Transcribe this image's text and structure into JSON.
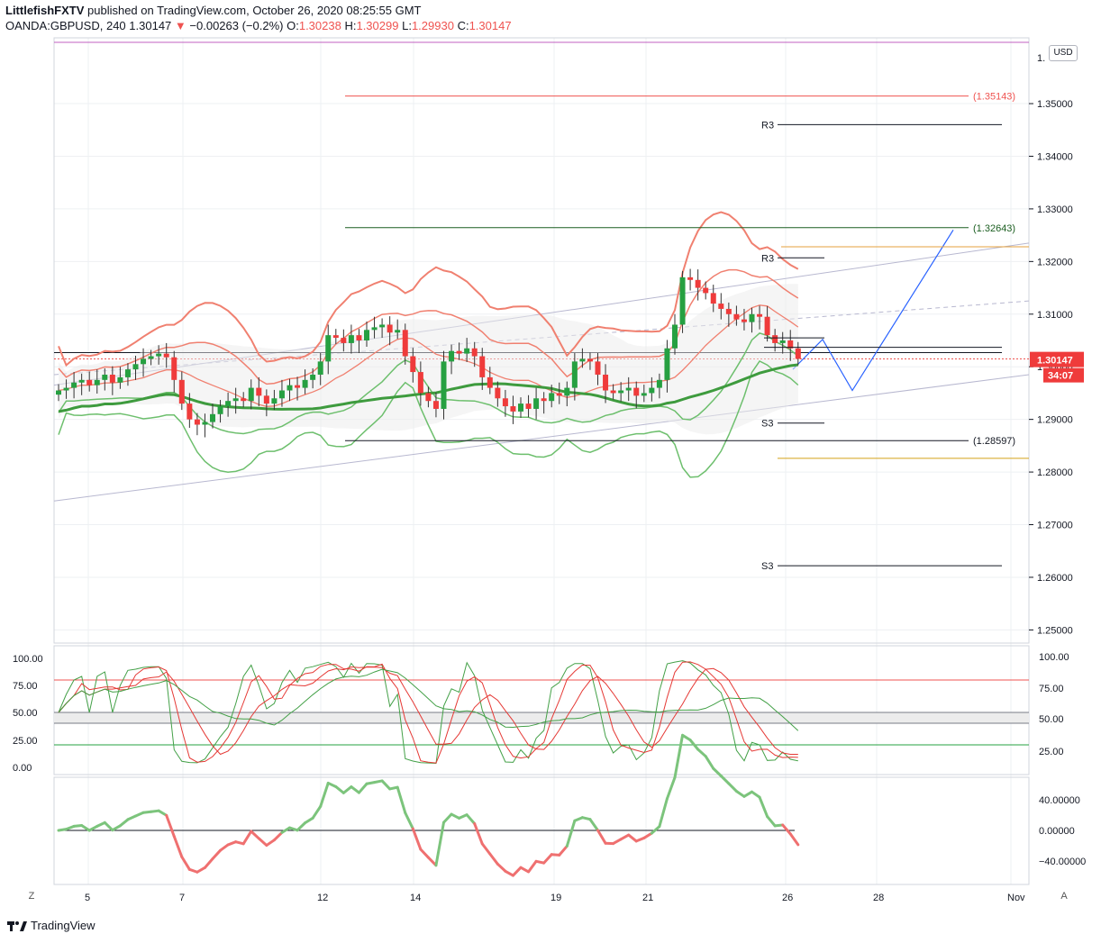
{
  "header": {
    "publisher": "LittlefishFXTV",
    "published_text": " published on TradingView.com, October 26, 2020 08:25:55 GMT",
    "symbol": "OANDA:GBPUSD, 240",
    "last": "1.30147",
    "change": "−0.00263 (−0.2%)",
    "o_label": "O:",
    "o": "1.30238",
    "h_label": "H:",
    "h": "1.30299",
    "l_label": "L:",
    "l": "1.29930",
    "c_label": "C:",
    "c": "1.30147"
  },
  "currency_label": "USD",
  "price_tag": "1.30147",
  "countdown_tag": "34:07",
  "footer_logo": "TradingView",
  "btn_z": "Z",
  "btn_a": "A",
  "colors": {
    "bull": "#26a041",
    "bear": "#ef3b3b",
    "band_red": "#f08070",
    "band_green": "#6dbf6d",
    "grid": "#eef0f3"
  },
  "chart_data": [
    {
      "type": "candlestick",
      "symbol": "OANDA:GBPUSD",
      "timeframe": "240",
      "y_ticks": [
        1.25,
        1.26,
        1.27,
        1.28,
        1.29,
        1.3,
        1.31,
        1.32,
        1.33,
        1.34,
        1.35
      ],
      "y_tick_labels": [
        "1.25000",
        "1.26000",
        "1.27000",
        "1.28000",
        "1.29000",
        "1.30000",
        "1.31000",
        "1.32000",
        "1.33000",
        "1.34000",
        "1.35000"
      ],
      "ylim": [
        1.2475,
        1.3625
      ],
      "x_ticks": [
        "5",
        "7",
        "12",
        "14",
        "19",
        "21",
        "26",
        "28",
        "Nov"
      ],
      "levels": [
        {
          "label": "(1.35143)",
          "value": 1.35143,
          "color": "#ef5350"
        },
        {
          "label": "(1.32643)",
          "value": 1.32643,
          "color": "#1b5e20"
        },
        {
          "label": "(1.28597)",
          "value": 1.28597,
          "color": "#131722"
        }
      ],
      "pivot_labels": [
        {
          "label": "R3",
          "value": 1.346
        },
        {
          "label": "R3",
          "value": 1.3207
        },
        {
          "label": "S3",
          "value": 1.2893
        },
        {
          "label": "S3",
          "value": 1.2622
        }
      ],
      "closes": [
        1.2955,
        1.296,
        1.297,
        1.2975,
        1.2965,
        1.2975,
        1.2985,
        1.297,
        1.298,
        1.2995,
        1.3005,
        1.3015,
        1.302,
        1.3025,
        1.3018,
        1.2975,
        1.293,
        1.29,
        1.289,
        1.2895,
        1.291,
        1.2925,
        1.2935,
        1.294,
        1.2935,
        1.296,
        1.2945,
        1.293,
        1.294,
        1.2955,
        1.2965,
        1.296,
        1.2975,
        1.2985,
        1.301,
        1.306,
        1.3055,
        1.3045,
        1.306,
        1.305,
        1.307,
        1.3075,
        1.308,
        1.3065,
        1.307,
        1.302,
        1.299,
        1.295,
        1.2935,
        1.292,
        1.301,
        1.303,
        1.3025,
        1.3035,
        1.302,
        1.298,
        1.296,
        1.294,
        1.2925,
        1.2915,
        1.293,
        1.292,
        1.294,
        1.2935,
        1.295,
        1.2945,
        1.296,
        1.301,
        1.3015,
        1.301,
        1.2985,
        1.2955,
        1.295,
        1.2955,
        1.296,
        1.2945,
        1.295,
        1.296,
        1.2975,
        1.3035,
        1.308,
        1.317,
        1.3165,
        1.315,
        1.314,
        1.312,
        1.311,
        1.31,
        1.309,
        1.3085,
        1.31,
        1.3095,
        1.306,
        1.3045,
        1.305,
        1.3035,
        1.3015
      ],
      "indicator_1": {
        "type": "line",
        "y_ticks": [
          "100.00",
          "75.00",
          "50.00",
          "25.00",
          "0.00"
        ],
        "right_ticks": [
          "100.00",
          "75.00",
          "50.00",
          "25.00"
        ],
        "levels": [
          80,
          20
        ]
      },
      "indicator_2": {
        "type": "line",
        "y_ticks": [
          "40.00000",
          "0.00000",
          "−40.00000"
        ]
      }
    }
  ]
}
